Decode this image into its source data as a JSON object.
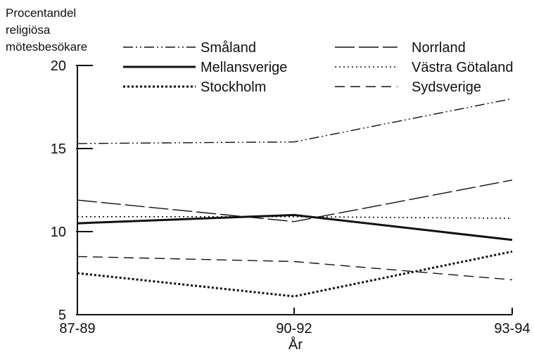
{
  "chart_data": {
    "type": "line",
    "ylabel_lines": [
      "Procentandel",
      "religiösa",
      "mötesbesökare"
    ],
    "xlabel": "År",
    "categories": [
      "87-89",
      "90-92",
      "93-94"
    ],
    "ylim": [
      5,
      20
    ],
    "yticks": [
      5,
      10,
      15,
      20
    ],
    "grid": false,
    "legend_position": "top",
    "series": [
      {
        "name": "Småland",
        "values": [
          15.3,
          15.4,
          18.0
        ],
        "style": "dash-dot-dot"
      },
      {
        "name": "Mellansverige",
        "values": [
          10.5,
          11.0,
          9.5
        ],
        "style": "solid"
      },
      {
        "name": "Stockholm",
        "values": [
          7.5,
          6.1,
          8.8
        ],
        "style": "dotted-heavy"
      },
      {
        "name": "Norrland",
        "values": [
          11.9,
          10.6,
          13.1
        ],
        "style": "long-dash"
      },
      {
        "name": "Västra Götaland",
        "values": [
          10.9,
          10.9,
          10.8
        ],
        "style": "dotted"
      },
      {
        "name": "Sydsverige",
        "values": [
          8.5,
          8.2,
          7.1
        ],
        "style": "dashed"
      }
    ],
    "colors": {
      "line": "#111111",
      "background": "#ffffff"
    }
  }
}
